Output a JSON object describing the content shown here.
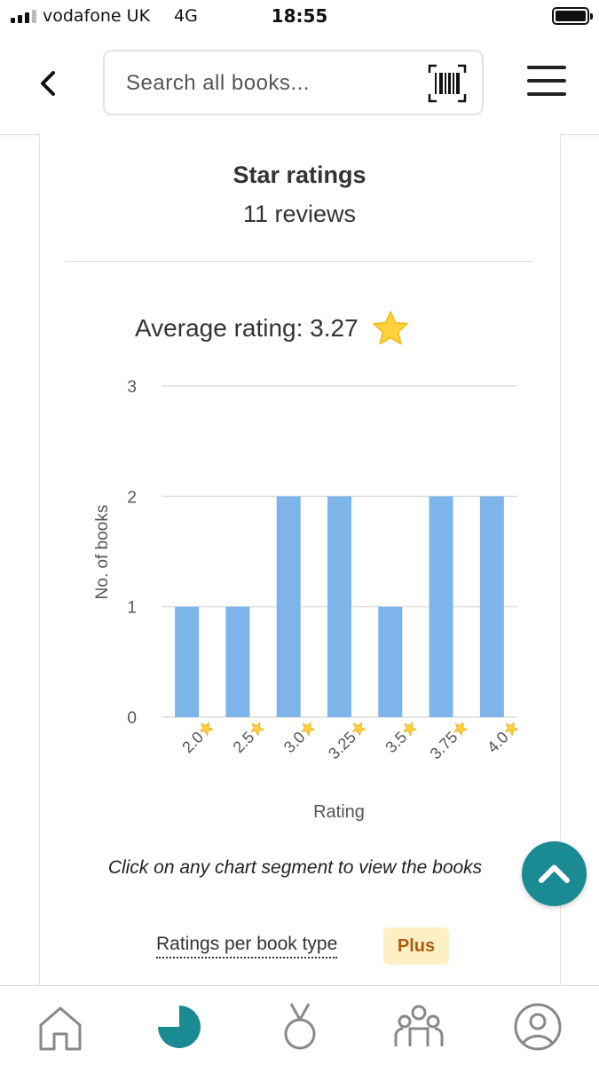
{
  "status_bar": {
    "carrier": "vodafone UK",
    "network": "4G",
    "time": "18:55"
  },
  "header": {
    "search_placeholder": "Search all books..."
  },
  "card": {
    "title": "Star ratings",
    "subtitle": "11 reviews",
    "average_label": "Average rating: 3.27"
  },
  "chart_data": {
    "type": "bar",
    "categories": [
      "2.0",
      "2.5",
      "3.0",
      "3.25",
      "3.5",
      "3.75",
      "4.0"
    ],
    "values": [
      1,
      1,
      2,
      2,
      1,
      2,
      2
    ],
    "xlabel": "Rating",
    "ylabel": "No. of books",
    "ylim": [
      0,
      3
    ],
    "yticks": [
      "0",
      "1",
      "2",
      "3"
    ],
    "grid": true,
    "bar_color": "#7db4ea"
  },
  "hint_text": "Click on any chart segment to view the books",
  "ratings_per_type": {
    "label": "Ratings per book type",
    "badge": "Plus"
  },
  "colors": {
    "accent": "#1a8a93",
    "nav_icon": "#888888",
    "badge_bg": "#fdf0c4",
    "badge_text": "#b45a10"
  },
  "nav": [
    {
      "icon": "home-icon"
    },
    {
      "icon": "stats-icon",
      "active": true
    },
    {
      "icon": "medal-icon"
    },
    {
      "icon": "community-icon"
    },
    {
      "icon": "profile-icon"
    }
  ]
}
